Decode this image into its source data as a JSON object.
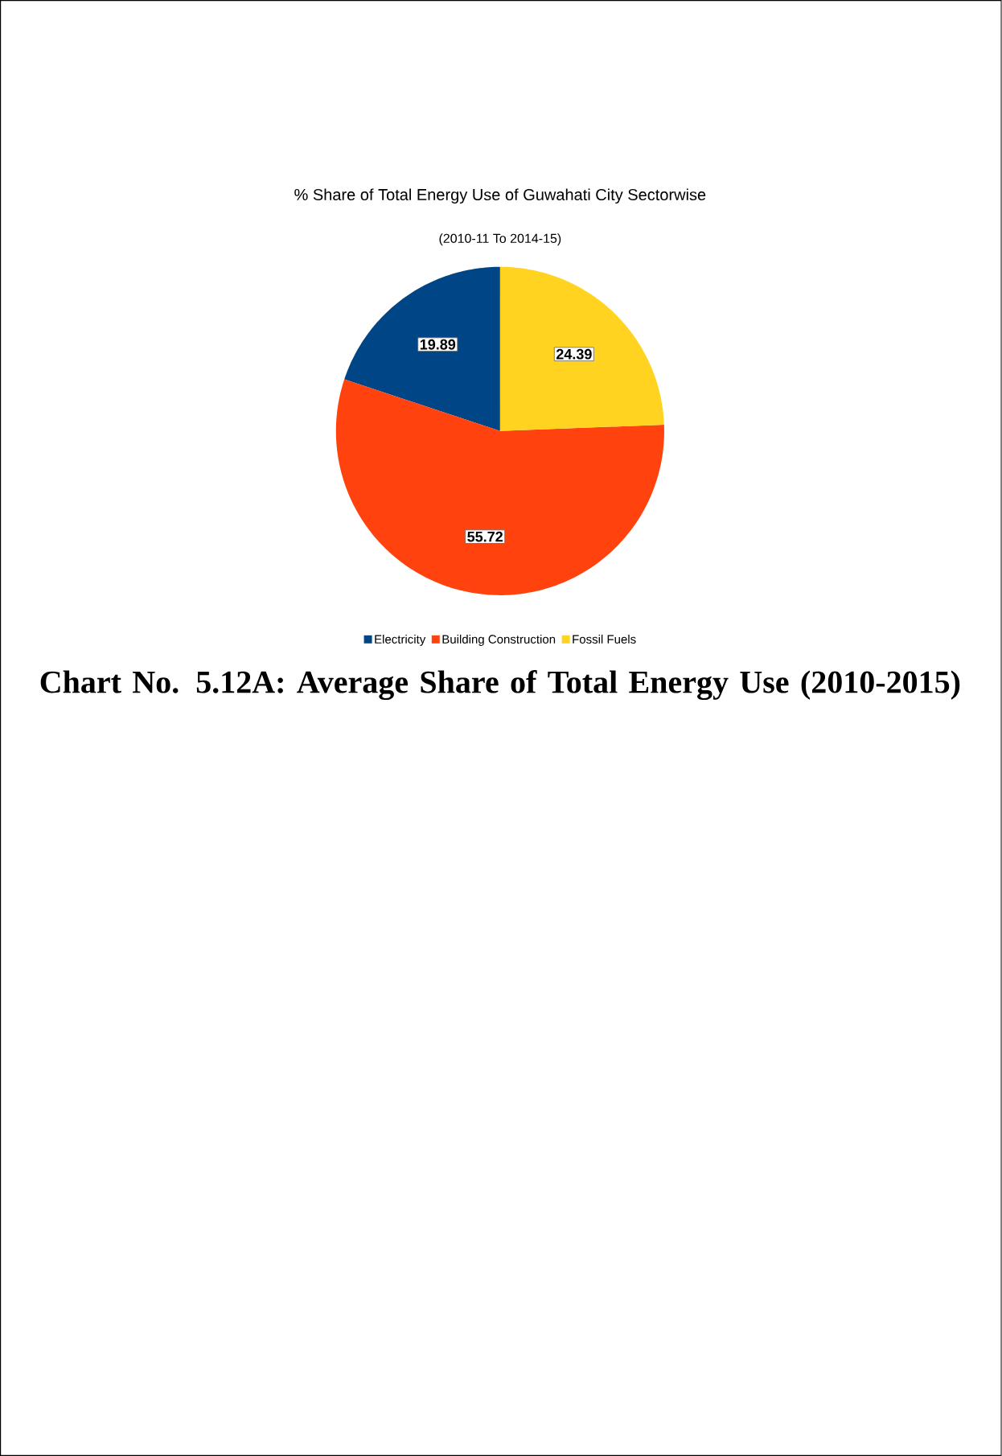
{
  "chart_data": {
    "type": "pie",
    "title": "% Share of Total Energy Use of Guwahati City Sectorwise",
    "subtitle": "(2010-11 To 2014-15)",
    "categories": [
      "Electricity",
      "Building Construction",
      "Fossil Fuels"
    ],
    "values": [
      19.89,
      55.72,
      24.39
    ],
    "colors": [
      "#004586",
      "#ff420e",
      "#ffd320"
    ],
    "data_labels": true,
    "legend": "bottom",
    "annotations": [
      "Chart No. 5.12A: Average Share of Total Energy Use (2010-2015)"
    ]
  }
}
